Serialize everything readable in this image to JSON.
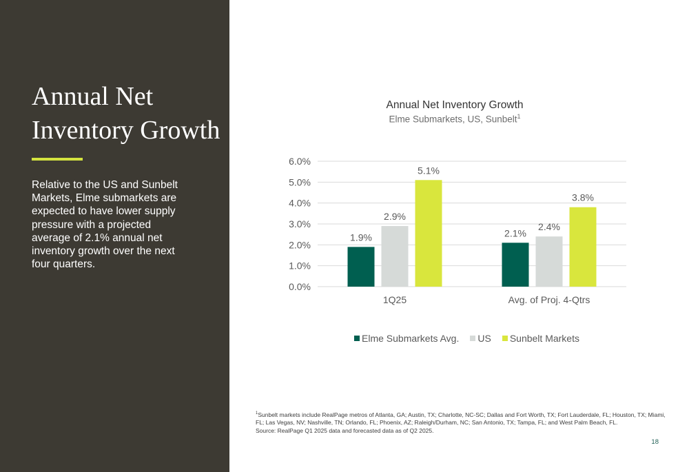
{
  "page": {
    "title": "Annual Net Inventory Growth",
    "description": "Relative to the US and Sunbelt Markets, Elme submarkets are expected to have lower supply pressure with a projected average of 2.1% annual net inventory growth over the next four quarters.",
    "footnote_marker": "1",
    "footnote_text": "Sunbelt markets include RealPage metros of Atlanta, GA; Austin, TX; Charlotte, NC-SC; Dallas and Fort Worth, TX; Fort Lauderdale, FL; Houston, TX; Miami, FL; Las Vegas, NV; Nashville, TN; Orlando, FL; Phoenix, AZ; Raleigh/Durham, NC; San Antonio, TX; Tampa, FL; and West Palm Beach, FL.",
    "source_text": "Source: RealPage Q1 2025 data and forecasted data as of Q2 2025.",
    "page_number": "18",
    "colors": {
      "panel_background": "#3d3a33",
      "accent": "#d4e33f"
    }
  },
  "chart_data": {
    "type": "bar",
    "title": "Annual Net Inventory Growth",
    "subtitle": "Elme Submarkets, US, Sunbelt",
    "subtitle_marker": "1",
    "categories": [
      "1Q25",
      "Avg. of Proj. 4-Qtrs"
    ],
    "series": [
      {
        "name": "Elme Submarkets Avg.",
        "color": "#005f50",
        "values": [
          1.9,
          2.1
        ],
        "labels": [
          "1.9%",
          "2.1%"
        ]
      },
      {
        "name": "US",
        "color": "#d6dad8",
        "values": [
          2.9,
          2.4
        ],
        "labels": [
          "2.9%",
          "2.4%"
        ]
      },
      {
        "name": "Sunbelt Markets",
        "color": "#d9e63d",
        "values": [
          5.1,
          3.8
        ],
        "labels": [
          "5.1%",
          "3.8%"
        ]
      }
    ],
    "ylim": [
      0,
      6
    ],
    "yticks": [
      0,
      1,
      2,
      3,
      4,
      5,
      6
    ],
    "ytick_labels": [
      "0.0%",
      "1.0%",
      "2.0%",
      "3.0%",
      "4.0%",
      "5.0%",
      "6.0%"
    ],
    "grid": true,
    "legend_position": "bottom"
  }
}
